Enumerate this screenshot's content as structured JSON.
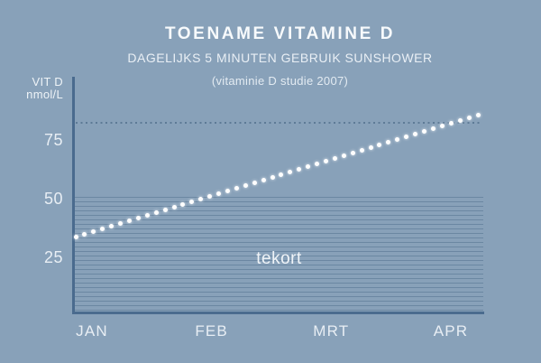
{
  "header": {
    "title": "TOENAME VITAMINE D",
    "subtitle": "DAGELIJKS 5 MINUTEN GEBRUIK SUNSHOWER",
    "caption": "(vitaminie D studie 2007)"
  },
  "chart_data": {
    "type": "line",
    "line_style": "dotted",
    "title": "TOENAME VITAMINE D",
    "subtitle": "DAGELIJKS 5 MINUTEN GEBRUIK SUNSHOWER",
    "caption": "(vitaminie D studie 2007)",
    "x": [
      "JAN",
      "FEB",
      "MRT",
      "APR"
    ],
    "series": [
      {
        "name": "vitamine D",
        "values": [
          33,
          50,
          67,
          85
        ]
      }
    ],
    "ylabel_lines": {
      "line1": "VIT D",
      "line2": "nmol/L"
    },
    "y_ticks": [
      25,
      50,
      75
    ],
    "ylim": [
      0,
      100
    ],
    "grid": "off",
    "legend": "none",
    "reference_line": {
      "value": 82,
      "style": "dotted"
    },
    "deficiency_zone": {
      "label": "tekort",
      "min": 0,
      "max": 50,
      "style": "horizontal-hatch"
    },
    "colors": {
      "background": "#88a1b9",
      "axis": "#4a6b8e",
      "hatch": "#6b87a2",
      "reference_dots": "#5d7a96",
      "trend_dots": "#ffffff",
      "text": "#f2f6f9"
    }
  }
}
